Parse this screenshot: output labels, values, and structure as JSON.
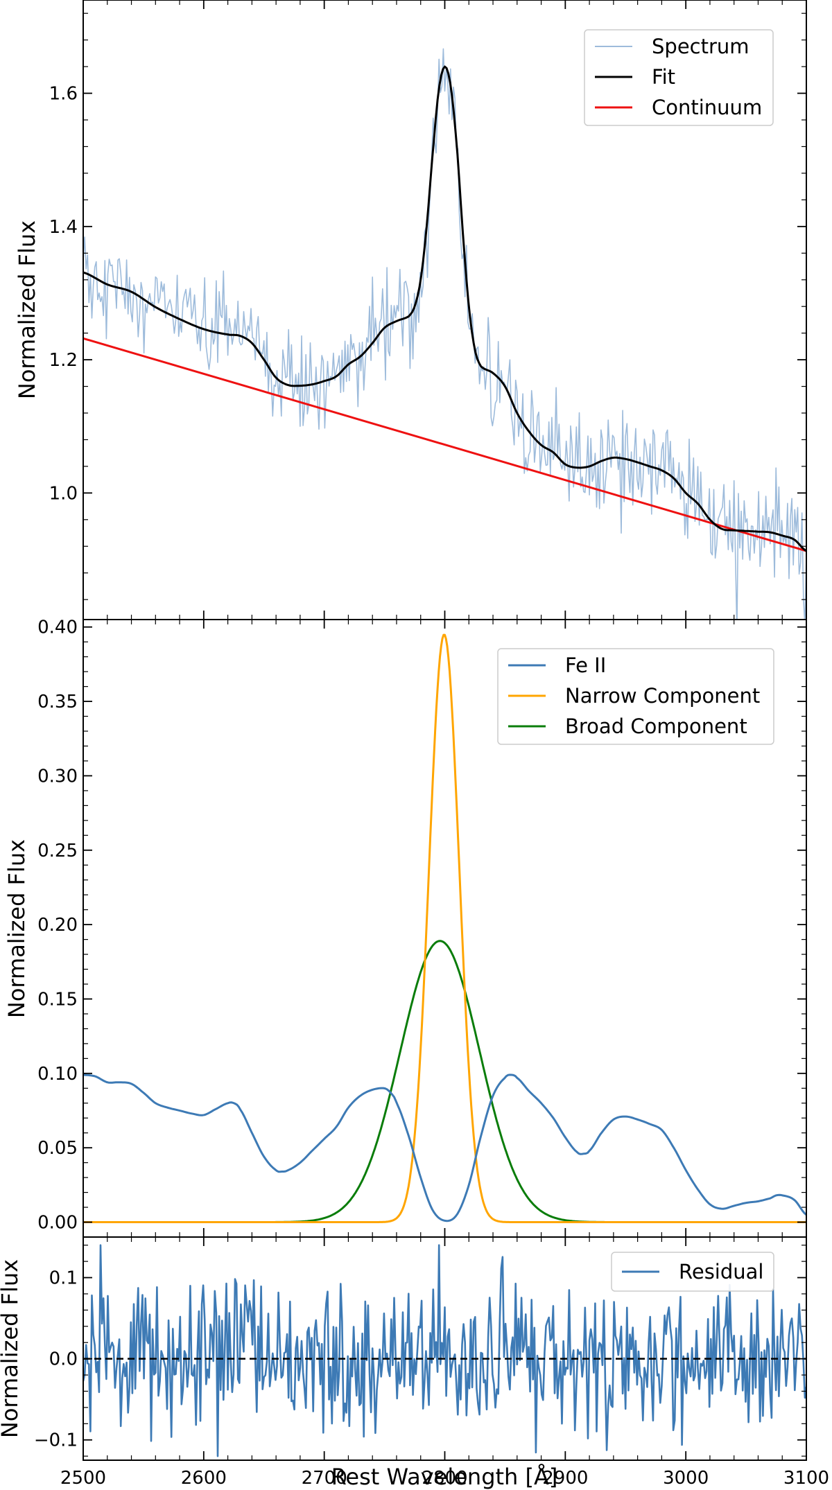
{
  "chart_data": [
    {
      "type": "line",
      "panel": "top",
      "ylabel": "Normalized Flux",
      "xlim": [
        2500,
        3100
      ],
      "ylim": [
        0.81,
        1.74
      ],
      "yticks": [
        1.0,
        1.2,
        1.4,
        1.6
      ],
      "ytick_labels": [
        "1.0",
        "1.2",
        "1.4",
        "1.6"
      ],
      "legend": [
        "Spectrum",
        "Fit",
        "Continuum"
      ],
      "legend_location": "upper right",
      "colors": {
        "Spectrum": "#9dbbdb",
        "Fit": "#000000",
        "Continuum": "#ee1111"
      },
      "series": [
        {
          "name": "Fit",
          "x": [
            2500,
            2520,
            2540,
            2560,
            2580,
            2600,
            2620,
            2630,
            2640,
            2650,
            2660,
            2670,
            2680,
            2690,
            2700,
            2710,
            2720,
            2730,
            2740,
            2750,
            2760,
            2770,
            2775,
            2780,
            2785,
            2790,
            2795,
            2800,
            2805,
            2810,
            2815,
            2820,
            2825,
            2830,
            2840,
            2850,
            2860,
            2870,
            2880,
            2890,
            2900,
            2910,
            2920,
            2930,
            2940,
            2950,
            2960,
            2970,
            2980,
            2990,
            3000,
            3010,
            3020,
            3030,
            3040,
            3050,
            3060,
            3070,
            3080,
            3090,
            3100
          ],
          "values": [
            1.331,
            1.313,
            1.302,
            1.279,
            1.261,
            1.246,
            1.238,
            1.236,
            1.225,
            1.2,
            1.173,
            1.162,
            1.161,
            1.163,
            1.168,
            1.175,
            1.193,
            1.205,
            1.225,
            1.248,
            1.258,
            1.265,
            1.28,
            1.32,
            1.4,
            1.51,
            1.605,
            1.64,
            1.61,
            1.52,
            1.39,
            1.28,
            1.215,
            1.19,
            1.18,
            1.16,
            1.12,
            1.092,
            1.072,
            1.061,
            1.043,
            1.038,
            1.04,
            1.048,
            1.053,
            1.051,
            1.046,
            1.04,
            1.034,
            1.022,
            1.0,
            0.984,
            0.96,
            0.946,
            0.944,
            0.943,
            0.942,
            0.941,
            0.936,
            0.93,
            0.913
          ]
        },
        {
          "name": "Continuum",
          "x": [
            2500,
            3100
          ],
          "values": [
            1.232,
            0.913
          ]
        },
        {
          "name": "Spectrum",
          "description_of_values": "noisy observed spectrum scattered about the Fit curve with amplitude about 0.04 in normalized flux"
        }
      ]
    },
    {
      "type": "line",
      "panel": "middle",
      "ylabel": "Normalized Flux",
      "xlim": [
        2500,
        3100
      ],
      "ylim": [
        -0.01,
        0.405
      ],
      "yticks": [
        0.0,
        0.05,
        0.1,
        0.15,
        0.2,
        0.25,
        0.3,
        0.35,
        0.4
      ],
      "ytick_labels": [
        "0.00",
        "0.05",
        "0.10",
        "0.15",
        "0.20",
        "0.25",
        "0.30",
        "0.35",
        "0.40"
      ],
      "legend": [
        "Fe II",
        "Narrow Component",
        "Broad Component"
      ],
      "legend_location": "upper right",
      "colors": {
        "Fe II": "#3d7ab5",
        "Narrow Component": "#ffa500",
        "Broad Component": "#0a7d0a"
      },
      "series": [
        {
          "name": "Fe II",
          "x": [
            2500,
            2510,
            2520,
            2530,
            2540,
            2550,
            2560,
            2570,
            2580,
            2590,
            2600,
            2610,
            2620,
            2625,
            2630,
            2640,
            2650,
            2660,
            2665,
            2670,
            2680,
            2690,
            2700,
            2710,
            2720,
            2730,
            2740,
            2750,
            2755,
            2760,
            2770,
            2780,
            2790,
            2800,
            2810,
            2820,
            2830,
            2840,
            2850,
            2855,
            2860,
            2870,
            2880,
            2890,
            2900,
            2910,
            2915,
            2920,
            2930,
            2940,
            2950,
            2960,
            2970,
            2980,
            2990,
            3000,
            3010,
            3020,
            3030,
            3040,
            3050,
            3060,
            3070,
            3075,
            3080,
            3090,
            3100
          ],
          "values": [
            0.099,
            0.098,
            0.094,
            0.094,
            0.093,
            0.087,
            0.08,
            0.077,
            0.075,
            0.073,
            0.072,
            0.076,
            0.08,
            0.08,
            0.076,
            0.06,
            0.044,
            0.035,
            0.034,
            0.035,
            0.04,
            0.048,
            0.056,
            0.064,
            0.077,
            0.085,
            0.089,
            0.09,
            0.087,
            0.08,
            0.058,
            0.03,
            0.008,
            0.001,
            0.005,
            0.025,
            0.058,
            0.085,
            0.097,
            0.099,
            0.097,
            0.088,
            0.08,
            0.07,
            0.057,
            0.047,
            0.046,
            0.048,
            0.06,
            0.069,
            0.071,
            0.069,
            0.066,
            0.062,
            0.05,
            0.035,
            0.022,
            0.012,
            0.009,
            0.011,
            0.013,
            0.014,
            0.016,
            0.018,
            0.018,
            0.015,
            0.005
          ]
        },
        {
          "name": "Narrow Component",
          "gaussian": {
            "amplitude": 0.395,
            "center": 2799.5,
            "sigma": 12.5
          }
        },
        {
          "name": "Broad Component",
          "gaussian": {
            "amplitude": 0.189,
            "center": 2796,
            "sigma": 33
          }
        }
      ]
    },
    {
      "type": "line",
      "panel": "bottom",
      "ylabel": "Normalized Flux",
      "xlabel": "Rest Wavelength [Å]",
      "xlim": [
        2500,
        3100
      ],
      "ylim": [
        -0.125,
        0.15
      ],
      "yticks": [
        -0.1,
        0.0,
        0.1
      ],
      "ytick_labels": [
        "−0.1",
        "0.0",
        "0.1"
      ],
      "xticks": [
        2500,
        2600,
        2700,
        2800,
        2900,
        3000,
        3100
      ],
      "xtick_labels": [
        "2500",
        "2600",
        "2700",
        "2800",
        "2900",
        "3000",
        "3100"
      ],
      "legend": [
        "Residual"
      ],
      "legend_location": "upper right",
      "colors": {
        "Residual": "#3d7ab5",
        "zero_line": "#000000"
      },
      "series": [
        {
          "name": "Residual",
          "description_of_values": "noise about zero, standard deviation about 0.045, range -0.12 to 0.14"
        },
        {
          "name": "Zero line",
          "style": "dashed",
          "x": [
            2500,
            3100
          ],
          "values": [
            0.0,
            0.0
          ]
        }
      ]
    }
  ]
}
